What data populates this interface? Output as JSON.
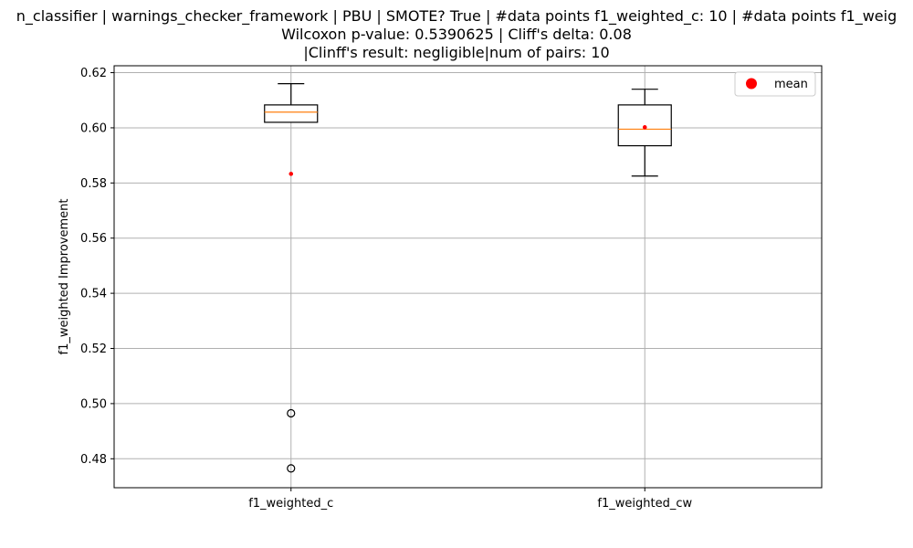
{
  "chart_data": {
    "type": "box",
    "title": [
      "n_classifier | warnings_checker_framework | PBU | SMOTE? True | #data points f1_weighted_c: 10 | #data points f1_weig",
      "Wilcoxon p-value: 0.5390625 | Cliff's delta: 0.08",
      "|Clinff's result: negligible|num of pairs: 10"
    ],
    "xlabel": "",
    "ylabel": "f1_weighted Improvement",
    "ylim": [
      0.4695,
      0.6225
    ],
    "yticks": [
      0.48,
      0.5,
      0.52,
      0.54,
      0.56,
      0.58,
      0.6,
      0.62
    ],
    "ytick_labels": [
      "0.48",
      "0.50",
      "0.52",
      "0.54",
      "0.56",
      "0.58",
      "0.60",
      "0.62"
    ],
    "grid": true,
    "legend": {
      "position": "top-right",
      "entries": [
        "mean"
      ]
    },
    "colors": {
      "box": "#000000",
      "median": "#ff7f0e",
      "mean": "#ff0000",
      "grid": "#b0b0b0"
    },
    "categories": [
      "f1_weighted_c",
      "f1_weighted_cw"
    ],
    "boxes": [
      {
        "name": "f1_weighted_c",
        "whisker_low": 0.602,
        "q1": 0.602,
        "median": 0.6057,
        "q3": 0.6083,
        "whisker_high": 0.616,
        "outliers": [
          0.4965,
          0.4765
        ],
        "mean": 0.5833
      },
      {
        "name": "f1_weighted_cw",
        "whisker_low": 0.5825,
        "q1": 0.5935,
        "median": 0.5995,
        "q3": 0.6083,
        "whisker_high": 0.614,
        "outliers": [],
        "mean": 0.6002
      }
    ]
  }
}
